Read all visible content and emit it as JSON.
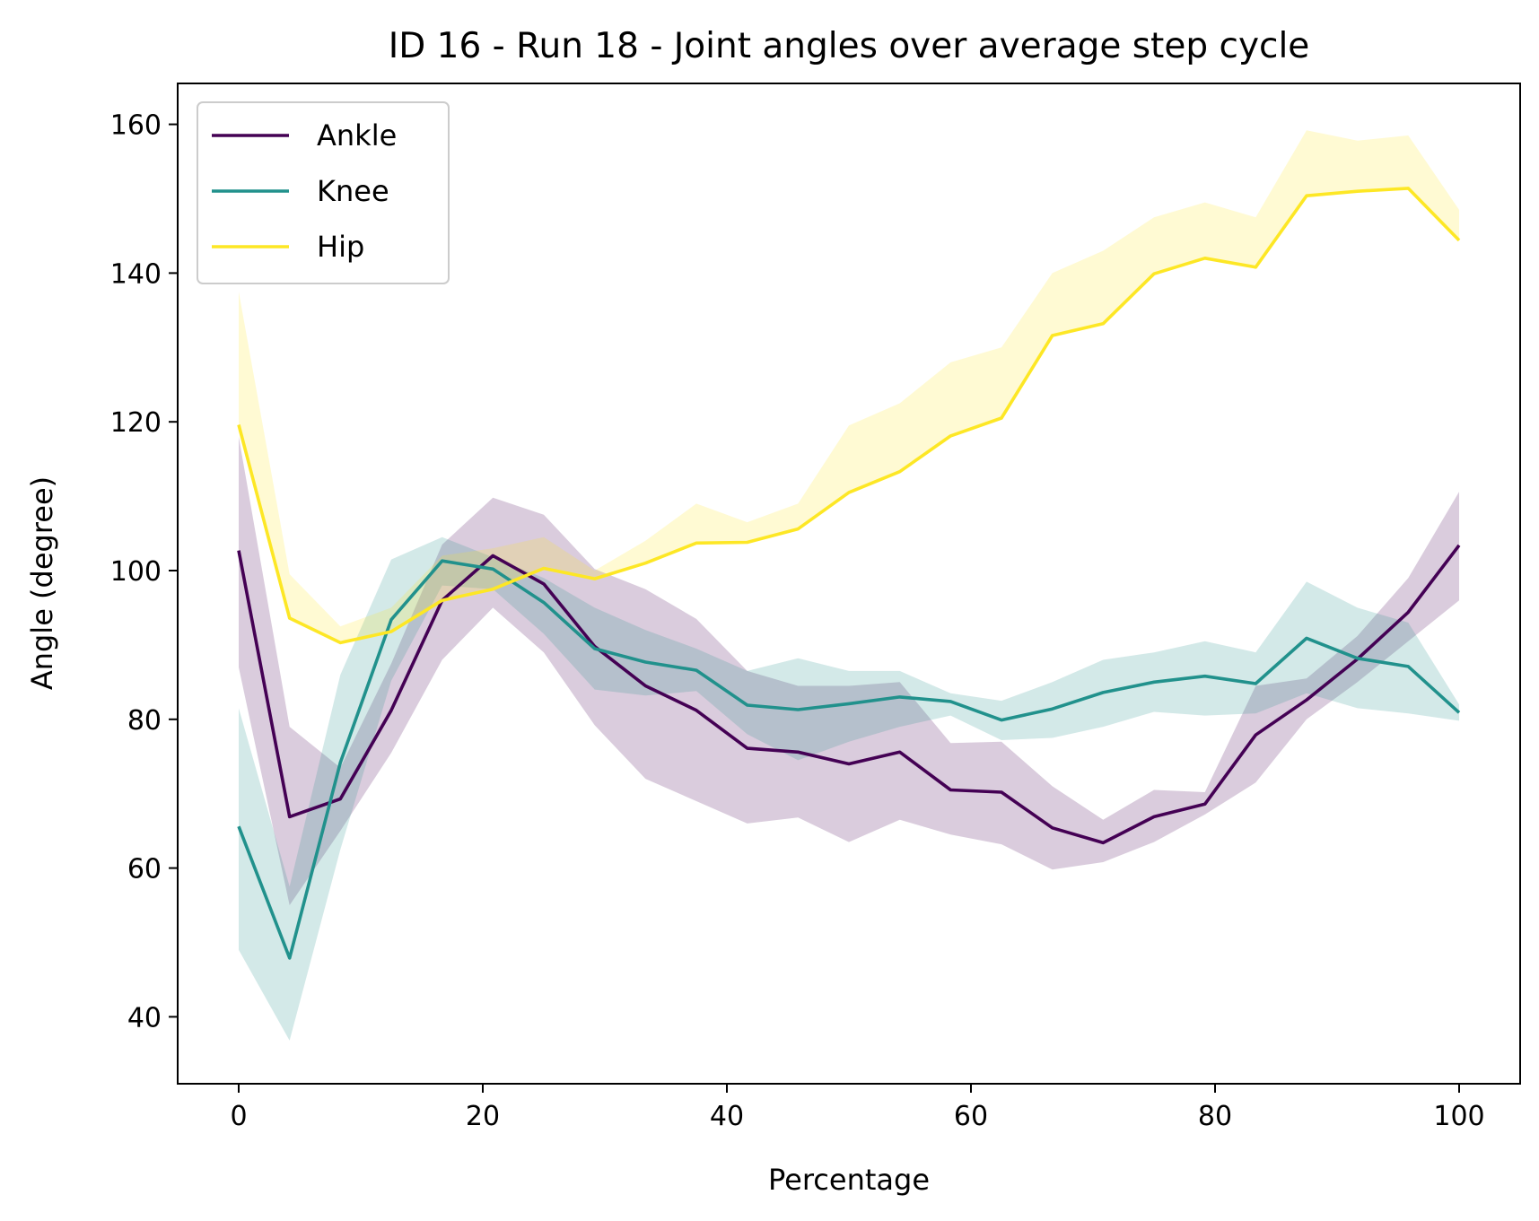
{
  "chart_data": {
    "type": "line",
    "title": "ID 16 - Run 18 - Joint angles over average step cycle",
    "xlabel": "Percentage",
    "ylabel": "Angle (degree)",
    "xlim": [
      -5,
      105
    ],
    "ylim": [
      31,
      165.5
    ],
    "xticks": [
      0,
      20,
      40,
      60,
      80,
      100
    ],
    "xtick_labels": [
      "0",
      "20",
      "40",
      "60",
      "80",
      "100"
    ],
    "yticks": [
      40,
      60,
      80,
      100,
      120,
      140,
      160
    ],
    "ytick_labels": [
      "40",
      "60",
      "80",
      "100",
      "120",
      "140",
      "160"
    ],
    "grid": false,
    "legend_position": "upper-left",
    "x": [
      0,
      4.17,
      8.33,
      12.5,
      16.67,
      20.83,
      25,
      29.17,
      33.33,
      37.5,
      41.67,
      45.83,
      50,
      54.17,
      58.33,
      62.5,
      66.67,
      70.83,
      75,
      79.17,
      83.33,
      87.5,
      91.67,
      95.83,
      100
    ],
    "series": [
      {
        "name": "Ankle",
        "color": "#440154",
        "values": [
          102.7,
          66.9,
          69.3,
          81.2,
          96.0,
          102.0,
          98.2,
          89.8,
          84.5,
          81.2,
          76.1,
          75.6,
          74.0,
          75.6,
          70.5,
          70.2,
          65.4,
          63.4,
          66.9,
          68.6,
          77.9,
          82.6,
          88.1,
          94.4,
          103.4
        ],
        "upper": [
          118.0,
          79.0,
          73.5,
          87.5,
          103.5,
          109.8,
          107.5,
          100.2,
          97.5,
          93.5,
          86.5,
          84.5,
          84.5,
          85.0,
          76.8,
          77.0,
          71.0,
          66.5,
          70.5,
          70.2,
          84.5,
          85.5,
          91.2,
          99.0,
          110.6
        ],
        "lower": [
          87.0,
          55.0,
          65.0,
          75.5,
          88.0,
          95.0,
          89.0,
          79.2,
          72.0,
          69.0,
          66.0,
          66.8,
          63.5,
          66.5,
          64.5,
          63.2,
          59.8,
          60.8,
          63.5,
          67.2,
          71.5,
          80.0,
          85.0,
          90.5,
          96.0
        ]
      },
      {
        "name": "Knee",
        "color": "#21918c",
        "values": [
          65.6,
          47.9,
          74.2,
          93.4,
          101.3,
          100.2,
          95.7,
          89.5,
          87.7,
          86.6,
          81.9,
          81.3,
          82.1,
          83.0,
          82.4,
          79.9,
          81.4,
          83.6,
          85.0,
          85.8,
          84.8,
          90.9,
          88.2,
          87.1,
          80.9
        ],
        "upper": [
          81.5,
          57.5,
          86.0,
          101.5,
          104.5,
          101.8,
          99.0,
          95.0,
          92.0,
          89.5,
          86.5,
          88.2,
          86.5,
          86.5,
          83.5,
          82.5,
          85.0,
          88.0,
          89.0,
          90.5,
          89.0,
          98.5,
          95.0,
          93.0,
          82.0
        ],
        "lower": [
          49.0,
          36.8,
          62.5,
          85.2,
          98.0,
          97.5,
          91.5,
          84.0,
          83.2,
          83.8,
          78.0,
          74.5,
          77.0,
          79.0,
          80.5,
          77.2,
          77.5,
          79.0,
          81.0,
          80.5,
          80.8,
          83.5,
          81.5,
          80.8,
          79.8
        ]
      },
      {
        "name": "Hip",
        "color": "#fde725",
        "values": [
          119.6,
          93.6,
          90.3,
          91.8,
          96.0,
          97.5,
          100.3,
          98.9,
          101.0,
          103.7,
          103.8,
          105.6,
          110.5,
          113.3,
          118.1,
          120.5,
          131.6,
          133.2,
          139.9,
          142.0,
          140.8,
          150.4,
          151.0,
          151.4,
          144.4
        ],
        "upper": [
          137.5,
          99.5,
          92.5,
          95.0,
          102.0,
          103.0,
          104.5,
          100.0,
          104.0,
          109.0,
          106.5,
          109.0,
          119.5,
          122.5,
          128.0,
          130.0,
          140.0,
          143.0,
          147.5,
          149.5,
          147.5,
          159.2,
          157.8,
          158.5,
          148.5
        ]
      }
    ]
  }
}
